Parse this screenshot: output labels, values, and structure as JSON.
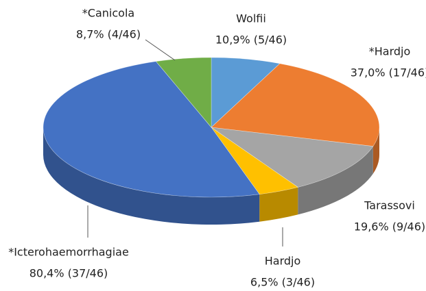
{
  "chart_data": {
    "type": "pie",
    "categories": [
      "Wolfii",
      "*Hardjo",
      "Tarassovi",
      "Hardjo",
      "*Icterohaemorrhagiae",
      "*Canicola"
    ],
    "values": [
      10.9,
      37.0,
      19.6,
      6.5,
      80.4,
      8.7
    ],
    "value_labels": [
      "10,9% (5/46)",
      "37,0% (17/46)",
      "19,6% (9/46)",
      "6,5% (3/46)",
      "80,4% (37/46)",
      "8,7% (4/46)"
    ],
    "colors": [
      "#5b9bd5",
      "#ed7d31",
      "#a5a5a5",
      "#ffc000",
      "#4472c4",
      "#70ad47"
    ]
  }
}
